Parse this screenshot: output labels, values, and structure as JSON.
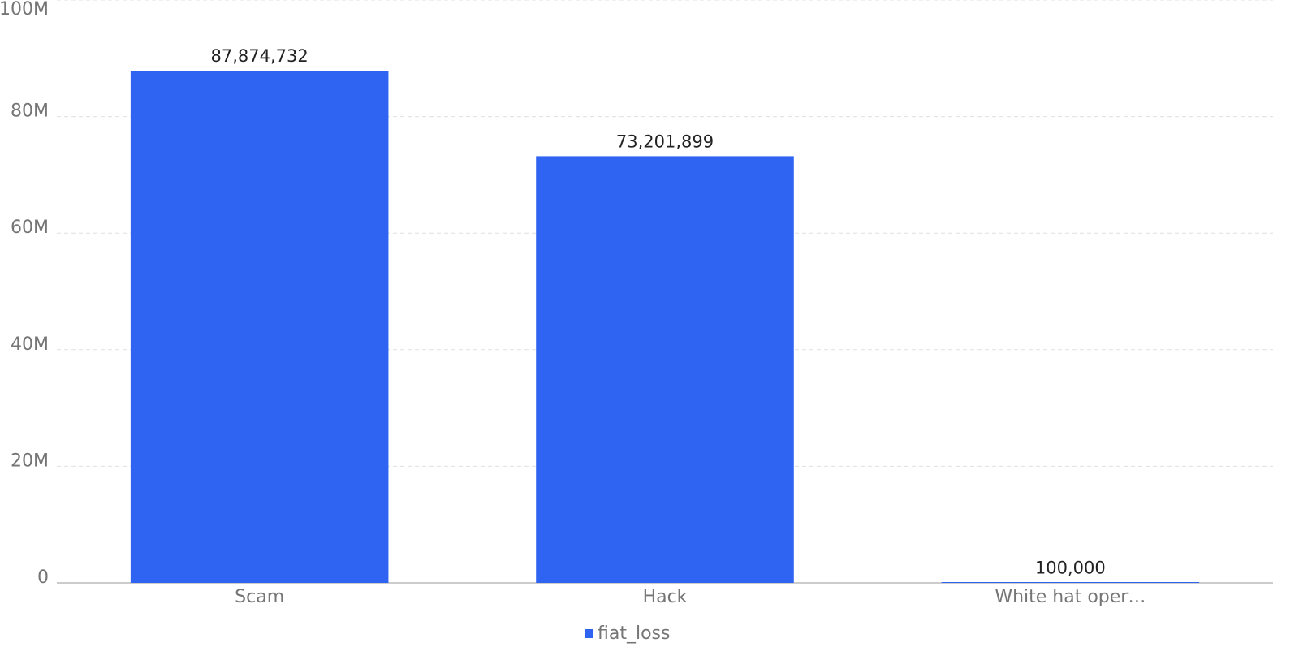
{
  "chart_data": {
    "type": "bar",
    "categories": [
      "Scam",
      "Hack",
      "White hat oper…"
    ],
    "series": [
      {
        "name": "fiat_loss",
        "color": "#2f64f2",
        "values": [
          87874732,
          73201899,
          100000
        ]
      }
    ],
    "value_labels": [
      "87,874,732",
      "73,201,899",
      "100,000"
    ],
    "ylim": [
      0,
      100000000
    ],
    "yticks": [
      {
        "value": 0,
        "label": "0"
      },
      {
        "value": 20000000,
        "label": "20M"
      },
      {
        "value": 40000000,
        "label": "40M"
      },
      {
        "value": 60000000,
        "label": "60M"
      },
      {
        "value": 80000000,
        "label": "80M"
      },
      {
        "value": 100000000,
        "label": "100M"
      }
    ],
    "grid": true
  }
}
